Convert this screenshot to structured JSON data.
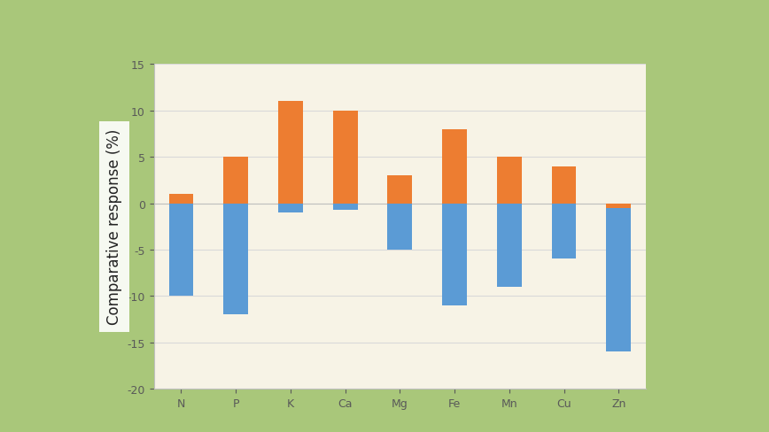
{
  "chart_data": {
    "type": "bar",
    "y_label": "Comparative response (%)",
    "categories": [
      "N",
      "P",
      "K",
      "Ca",
      "Mg",
      "Fe",
      "Mn",
      "Cu",
      "Zn"
    ],
    "series": [
      {
        "color": "#5b9bd5",
        "values": [
          -10,
          -12,
          -1,
          -0.7,
          -5,
          -11,
          -9,
          -6,
          -16
        ]
      },
      {
        "color": "#ed7d31",
        "values": [
          1,
          5,
          11,
          10,
          3,
          8,
          5,
          4,
          -0.5
        ]
      }
    ],
    "ylim": [
      -20,
      15
    ],
    "yticks": [
      -20,
      -15,
      -10,
      -5,
      0,
      5,
      10,
      15
    ],
    "grid": true
  }
}
